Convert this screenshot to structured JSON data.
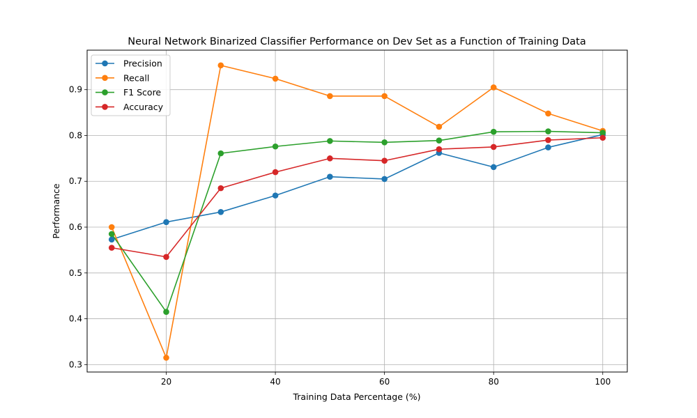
{
  "chart_data": {
    "type": "line",
    "title": "Neural Network Binarized Classifier Performance on Dev Set as a Function of Training Data",
    "xlabel": "Training Data Percentage (%)",
    "ylabel": "Performance",
    "x": [
      10,
      20,
      30,
      40,
      50,
      60,
      70,
      80,
      90,
      100
    ],
    "xlim": [
      5.5,
      104.5
    ],
    "ylim": [
      0.2838,
      0.9862
    ],
    "xticks": [
      20,
      40,
      60,
      80,
      100
    ],
    "yticks": [
      0.3,
      0.4,
      0.5,
      0.6,
      0.7,
      0.8,
      0.9
    ],
    "xtick_labels": [
      "20",
      "40",
      "60",
      "80",
      "100"
    ],
    "ytick_labels": [
      "0.3",
      "0.4",
      "0.5",
      "0.6",
      "0.7",
      "0.8",
      "0.9"
    ],
    "grid": true,
    "legend_position": "top-left",
    "series": [
      {
        "name": "Precision",
        "color": "#1f77b4",
        "values": [
          0.573,
          0.611,
          0.633,
          0.669,
          0.71,
          0.705,
          0.762,
          0.731,
          0.774,
          0.802
        ]
      },
      {
        "name": "Recall",
        "color": "#ff7f0e",
        "values": [
          0.6,
          0.315,
          0.953,
          0.924,
          0.886,
          0.886,
          0.819,
          0.905,
          0.848,
          0.81
        ]
      },
      {
        "name": "F1 Score",
        "color": "#2ca02c",
        "values": [
          0.585,
          0.415,
          0.761,
          0.776,
          0.788,
          0.785,
          0.789,
          0.808,
          0.809,
          0.806
        ]
      },
      {
        "name": "Accuracy",
        "color": "#d62728",
        "values": [
          0.555,
          0.535,
          0.685,
          0.72,
          0.75,
          0.745,
          0.77,
          0.775,
          0.79,
          0.795
        ]
      }
    ]
  }
}
